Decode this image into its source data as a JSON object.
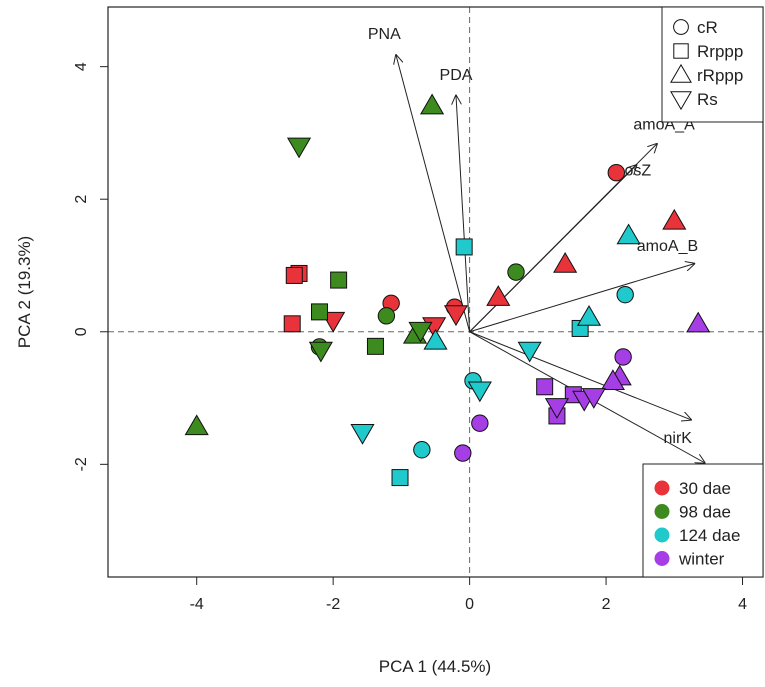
{
  "chart_data": {
    "type": "scatter",
    "title": "",
    "xlabel": "PCA 1 (44.5%)",
    "ylabel": "PCA 2 (19.3%)",
    "xlim": [
      -5.3,
      4.3
    ],
    "ylim": [
      -3.7,
      4.9
    ],
    "xticks": [
      -4,
      -2,
      0,
      2,
      4
    ],
    "yticks": [
      -2,
      0,
      2,
      4
    ],
    "xtick_labels": [
      "-4",
      "-2",
      "0",
      "2",
      "4"
    ],
    "ytick_labels": [
      "-2",
      "0",
      "2",
      "4"
    ],
    "reference_lines": [
      {
        "axis": "x",
        "value": 0
      },
      {
        "axis": "y",
        "value": 0
      }
    ],
    "colors": {
      "30 dae": "#e8333b",
      "98 dae": "#3d8a1f",
      "124 dae": "#1fc9cc",
      "winter": "#a63ee6"
    },
    "shape_legend": {
      "position": "top-right",
      "entries": [
        {
          "label": "cR",
          "shape": "circle"
        },
        {
          "label": "Rrppp",
          "shape": "square"
        },
        {
          "label": "rRppp",
          "shape": "triangle-up"
        },
        {
          "label": "Rs",
          "shape": "triangle-down"
        }
      ]
    },
    "color_legend": {
      "position": "bottom-right",
      "entries": [
        {
          "label": "30 dae",
          "color": "#e8333b"
        },
        {
          "label": "98 dae",
          "color": "#3d8a1f"
        },
        {
          "label": "124 dae",
          "color": "#1fc9cc"
        },
        {
          "label": "winter",
          "color": "#a63ee6"
        }
      ]
    },
    "loadings": [
      {
        "label": "PNA",
        "x": -1.08,
        "y": 4.18,
        "label_x": -1.25,
        "label_y": 4.42
      },
      {
        "label": "PDA",
        "x": -0.2,
        "y": 3.57,
        "label_x": -0.2,
        "label_y": 3.8
      },
      {
        "label": "amoA_A",
        "x": 2.75,
        "y": 2.84,
        "label_x": 2.85,
        "label_y": 3.05
      },
      {
        "label": "nosZ",
        "x": 2.45,
        "y": 2.52,
        "label_x": 2.4,
        "label_y": 2.36
      },
      {
        "label": "amoA_B",
        "x": 3.3,
        "y": 1.03,
        "label_x": 2.9,
        "label_y": 1.22
      },
      {
        "label": "nirK",
        "x": 3.25,
        "y": -1.33,
        "label_x": 3.05,
        "label_y": -1.68
      },
      {
        "label": "",
        "x": 3.45,
        "y": -1.98,
        "label_x": 0,
        "label_y": 0
      }
    ],
    "series": [
      {
        "name": "30 dae",
        "points": [
          {
            "x": 2.15,
            "y": 2.4,
            "shape": "circle"
          },
          {
            "x": -1.15,
            "y": 0.43,
            "shape": "circle"
          },
          {
            "x": -0.22,
            "y": 0.37,
            "shape": "circle"
          },
          {
            "x": -2.5,
            "y": 0.88,
            "shape": "square"
          },
          {
            "x": -2.57,
            "y": 0.85,
            "shape": "square"
          },
          {
            "x": -2.6,
            "y": 0.12,
            "shape": "square"
          },
          {
            "x": 3.0,
            "y": 1.67,
            "shape": "triangle-up"
          },
          {
            "x": 1.4,
            "y": 1.02,
            "shape": "triangle-up"
          },
          {
            "x": 0.42,
            "y": 0.52,
            "shape": "triangle-up"
          },
          {
            "x": -2.0,
            "y": 0.17,
            "shape": "triangle-down"
          },
          {
            "x": -0.2,
            "y": 0.27,
            "shape": "triangle-down"
          },
          {
            "x": -0.52,
            "y": 0.09,
            "shape": "triangle-down"
          }
        ]
      },
      {
        "name": "98 dae",
        "points": [
          {
            "x": 0.68,
            "y": 0.9,
            "shape": "circle"
          },
          {
            "x": -1.22,
            "y": 0.24,
            "shape": "circle"
          },
          {
            "x": -2.2,
            "y": -0.23,
            "shape": "circle"
          },
          {
            "x": -1.92,
            "y": 0.78,
            "shape": "square"
          },
          {
            "x": -2.2,
            "y": 0.3,
            "shape": "square"
          },
          {
            "x": -1.38,
            "y": -0.22,
            "shape": "square"
          },
          {
            "x": -0.55,
            "y": 3.41,
            "shape": "triangle-up"
          },
          {
            "x": -0.8,
            "y": -0.05,
            "shape": "triangle-up"
          },
          {
            "x": -4.0,
            "y": -1.43,
            "shape": "triangle-up"
          },
          {
            "x": -2.5,
            "y": 2.8,
            "shape": "triangle-down"
          },
          {
            "x": -0.72,
            "y": 0.02,
            "shape": "triangle-down"
          },
          {
            "x": -2.18,
            "y": -0.28,
            "shape": "triangle-down"
          }
        ]
      },
      {
        "name": "124 dae",
        "points": [
          {
            "x": 2.28,
            "y": 0.56,
            "shape": "circle"
          },
          {
            "x": 0.05,
            "y": -0.74,
            "shape": "circle"
          },
          {
            "x": -0.7,
            "y": -1.78,
            "shape": "circle"
          },
          {
            "x": -0.08,
            "y": 1.28,
            "shape": "square"
          },
          {
            "x": 1.62,
            "y": 0.05,
            "shape": "square"
          },
          {
            "x": -1.02,
            "y": -2.2,
            "shape": "square"
          },
          {
            "x": 2.33,
            "y": 1.45,
            "shape": "triangle-up"
          },
          {
            "x": 1.75,
            "y": 0.22,
            "shape": "triangle-up"
          },
          {
            "x": -0.5,
            "y": -0.14,
            "shape": "triangle-up"
          },
          {
            "x": 0.88,
            "y": -0.28,
            "shape": "triangle-down"
          },
          {
            "x": 0.15,
            "y": -0.88,
            "shape": "triangle-down"
          },
          {
            "x": -1.57,
            "y": -1.52,
            "shape": "triangle-down"
          }
        ]
      },
      {
        "name": "winter",
        "points": [
          {
            "x": 2.25,
            "y": -0.38,
            "shape": "circle"
          },
          {
            "x": 0.15,
            "y": -1.38,
            "shape": "circle"
          },
          {
            "x": -0.1,
            "y": -1.83,
            "shape": "circle"
          },
          {
            "x": 1.1,
            "y": -0.83,
            "shape": "square"
          },
          {
            "x": 1.28,
            "y": -1.27,
            "shape": "square"
          },
          {
            "x": 1.52,
            "y": -0.95,
            "shape": "square"
          },
          {
            "x": 3.35,
            "y": 0.12,
            "shape": "triangle-up"
          },
          {
            "x": 2.2,
            "y": -0.68,
            "shape": "triangle-up"
          },
          {
            "x": 2.1,
            "y": -0.75,
            "shape": "triangle-up"
          },
          {
            "x": 1.28,
            "y": -1.13,
            "shape": "triangle-down"
          },
          {
            "x": 1.68,
            "y": -1.02,
            "shape": "triangle-down"
          },
          {
            "x": 1.82,
            "y": -0.98,
            "shape": "triangle-down"
          }
        ]
      }
    ]
  }
}
